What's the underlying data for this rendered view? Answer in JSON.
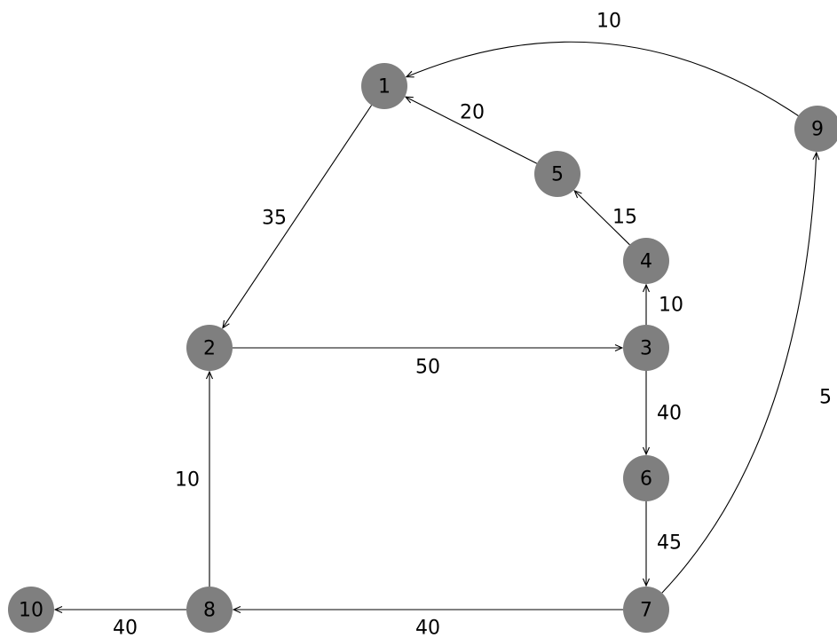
{
  "colors": {
    "node_fill": "#7f7f7f",
    "edge": "#000000",
    "background": "#ffffff"
  },
  "nodes": [
    {
      "id": "1",
      "label": "1"
    },
    {
      "id": "2",
      "label": "2"
    },
    {
      "id": "3",
      "label": "3"
    },
    {
      "id": "4",
      "label": "4"
    },
    {
      "id": "5",
      "label": "5"
    },
    {
      "id": "6",
      "label": "6"
    },
    {
      "id": "7",
      "label": "7"
    },
    {
      "id": "8",
      "label": "8"
    },
    {
      "id": "9",
      "label": "9"
    },
    {
      "id": "10",
      "label": "10"
    }
  ],
  "edges": [
    {
      "from": "1",
      "to": "2",
      "weight": "35"
    },
    {
      "from": "2",
      "to": "3",
      "weight": "50"
    },
    {
      "from": "3",
      "to": "4",
      "weight": "10"
    },
    {
      "from": "4",
      "to": "5",
      "weight": "15"
    },
    {
      "from": "5",
      "to": "1",
      "weight": "20"
    },
    {
      "from": "3",
      "to": "6",
      "weight": "40"
    },
    {
      "from": "6",
      "to": "7",
      "weight": "45"
    },
    {
      "from": "7",
      "to": "8",
      "weight": "40"
    },
    {
      "from": "8",
      "to": "2",
      "weight": "10"
    },
    {
      "from": "8",
      "to": "10",
      "weight": "40"
    },
    {
      "from": "7",
      "to": "9",
      "weight": "5"
    },
    {
      "from": "9",
      "to": "1",
      "weight": "10"
    }
  ]
}
